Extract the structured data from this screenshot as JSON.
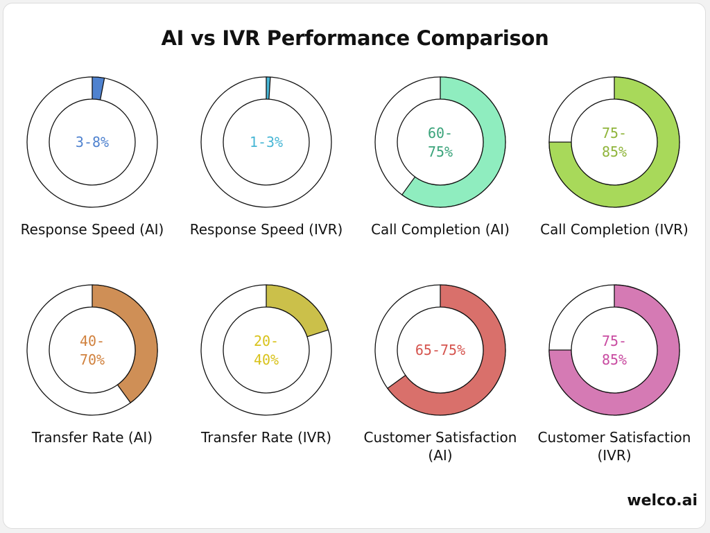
{
  "brand": "welco.ai",
  "chart_data": {
    "type": "donut",
    "title": "AI vs IVR Performance Comparison",
    "items": [
      {
        "label": "Response Speed (AI)",
        "value_text": "3-8%",
        "low": 3,
        "high": 8,
        "fill_fraction": 0.03,
        "color": "#4f82cf"
      },
      {
        "label": "Response Speed (IVR)",
        "value_text": "1-3%",
        "low": 1,
        "high": 3,
        "fill_fraction": 0.01,
        "color": "#47b6d5"
      },
      {
        "label": "Call Completion (AI)",
        "value_text": "60-75%",
        "low": 60,
        "high": 75,
        "fill_fraction": 0.6,
        "color": "#8fedbf"
      },
      {
        "label": "Call Completion (IVR)",
        "value_text": "75-85%",
        "low": 75,
        "high": 85,
        "fill_fraction": 0.75,
        "color": "#a8d95a"
      },
      {
        "label": "Transfer Rate (AI)",
        "value_text": "40-70%",
        "low": 40,
        "high": 70,
        "fill_fraction": 0.4,
        "color": "#cf8f56"
      },
      {
        "label": "Transfer Rate (IVR)",
        "value_text": "20-40%",
        "low": 20,
        "high": 40,
        "fill_fraction": 0.2,
        "color": "#cbc04a"
      },
      {
        "label": "Customer Satisfaction (AI)",
        "value_text": "65-75%",
        "low": 65,
        "high": 75,
        "fill_fraction": 0.65,
        "color": "#d9706b"
      },
      {
        "label": "Customer Satisfaction (IVR)",
        "value_text": "75-85%",
        "low": 75,
        "high": 85,
        "fill_fraction": 0.75,
        "color": "#d57ab4"
      }
    ],
    "center_text_colors": [
      "#4f82cf",
      "#47b6d5",
      "#3aa37a",
      "#8fb43a",
      "#d0803c",
      "#d8c21a",
      "#d5544e",
      "#c84aa0"
    ]
  }
}
